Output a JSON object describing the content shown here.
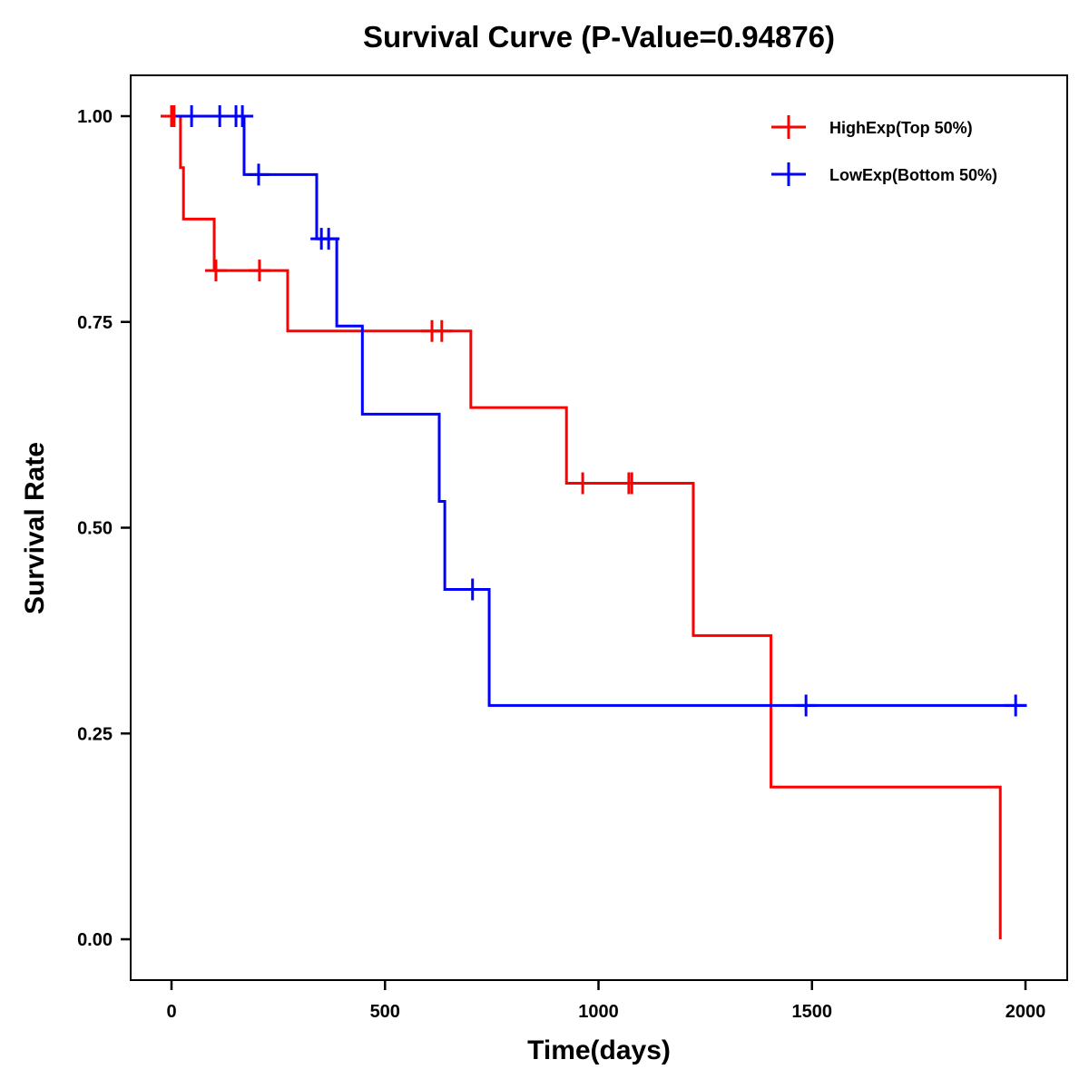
{
  "chart_data": {
    "type": "line",
    "subtype": "kaplan-meier-step",
    "title": "Survival Curve (P-Value=0.94876)",
    "xlabel": "Time(days)",
    "ylabel": "Survival Rate",
    "xlim": [
      -90,
      2090
    ],
    "ylim": [
      -0.05,
      1.05
    ],
    "xticks": [
      0,
      500,
      1000,
      1500,
      2000
    ],
    "xtick_labels": [
      "0",
      "500",
      "1000",
      "1500",
      "2000"
    ],
    "yticks": [
      0,
      0.25,
      0.5,
      0.75,
      1.0
    ],
    "ytick_labels": [
      "0.00",
      "0.25",
      "0.50",
      "0.75",
      "1.00"
    ],
    "grid": false,
    "legend_position": "top-right",
    "series": [
      {
        "name": "HighExp(Top 50%)",
        "color": "#ff0000",
        "steps": [
          {
            "x": -25,
            "y": 1.0
          },
          {
            "x": 21,
            "y": 0.9375
          },
          {
            "x": 28,
            "y": 0.875
          },
          {
            "x": 100,
            "y": 0.8125
          },
          {
            "x": 272,
            "y": 0.739
          },
          {
            "x": 701,
            "y": 0.646
          },
          {
            "x": 925,
            "y": 0.554
          },
          {
            "x": 1222,
            "y": 0.369
          },
          {
            "x": 1404,
            "y": 0.185
          },
          {
            "x": 1941,
            "y": 0.0
          }
        ],
        "end_x": 1941,
        "censored": [
          {
            "x": 0,
            "y": 1.0
          },
          {
            "x": 6,
            "y": 1.0
          },
          {
            "x": 104,
            "y": 0.8125
          },
          {
            "x": 206,
            "y": 0.8125
          },
          {
            "x": 610,
            "y": 0.739
          },
          {
            "x": 633,
            "y": 0.739
          },
          {
            "x": 963,
            "y": 0.554
          },
          {
            "x": 1071,
            "y": 0.554
          },
          {
            "x": 1078,
            "y": 0.554
          }
        ]
      },
      {
        "name": "LowExp(Bottom 50%)",
        "color": "#0000ff",
        "steps": [
          {
            "x": 9,
            "y": 1.0
          },
          {
            "x": 170,
            "y": 0.929
          },
          {
            "x": 340,
            "y": 0.851
          },
          {
            "x": 387,
            "y": 0.745
          },
          {
            "x": 447,
            "y": 0.638
          },
          {
            "x": 627,
            "y": 0.532
          },
          {
            "x": 640,
            "y": 0.425
          },
          {
            "x": 744,
            "y": 0.284
          }
        ],
        "end_x": 2003,
        "censored": [
          {
            "x": 47,
            "y": 1.0
          },
          {
            "x": 113,
            "y": 1.0
          },
          {
            "x": 151,
            "y": 1.0
          },
          {
            "x": 166,
            "y": 1.0
          },
          {
            "x": 204,
            "y": 0.929
          },
          {
            "x": 351,
            "y": 0.851
          },
          {
            "x": 368,
            "y": 0.851
          },
          {
            "x": 705,
            "y": 0.425
          },
          {
            "x": 1486,
            "y": 0.284
          },
          {
            "x": 1977,
            "y": 0.284
          }
        ]
      }
    ]
  }
}
